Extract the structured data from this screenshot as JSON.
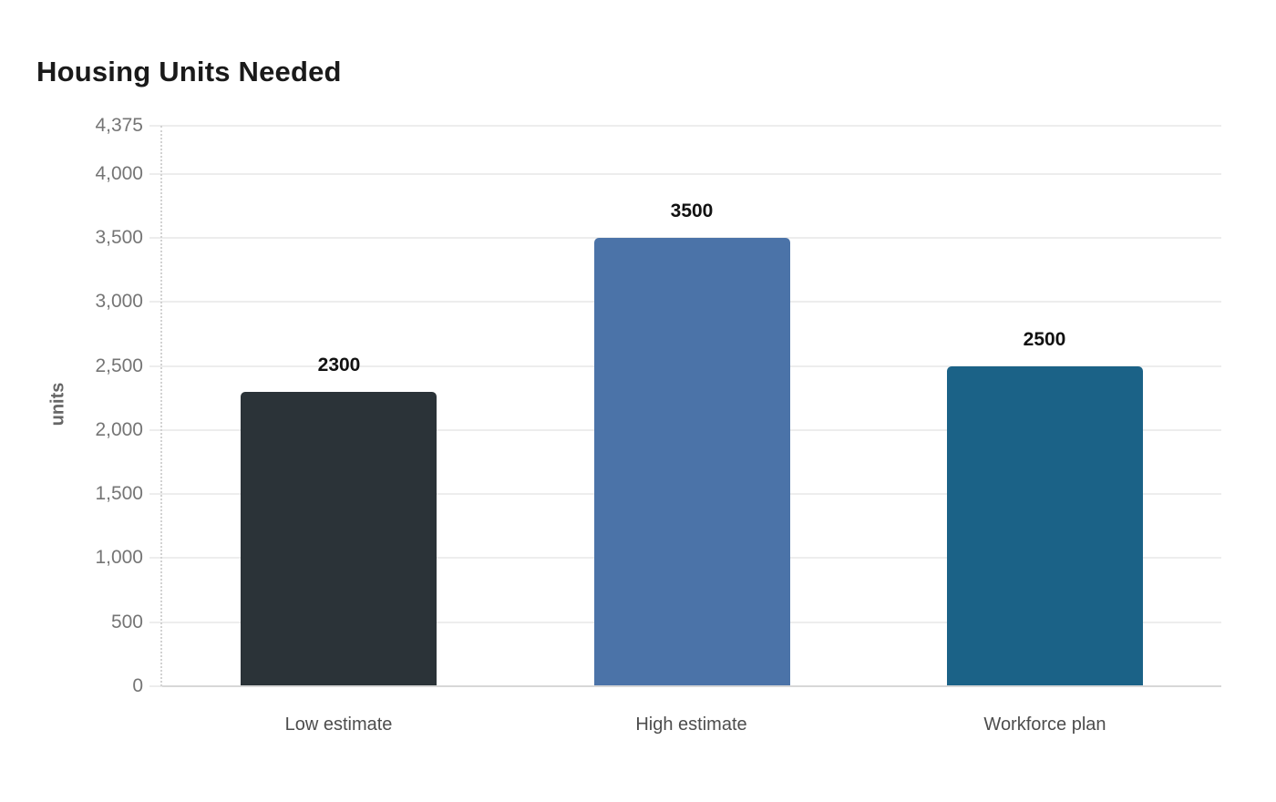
{
  "chart_data": {
    "type": "bar",
    "title": "Housing Units Needed",
    "xlabel": "",
    "ylabel": "units",
    "categories": [
      "Low estimate",
      "High estimate",
      "Workforce plan"
    ],
    "values": [
      2300,
      3500,
      2500
    ],
    "value_labels": [
      "2300",
      "3500",
      "2500"
    ],
    "bar_colors": [
      "#2b3338",
      "#4b73a8",
      "#1b6287"
    ],
    "ylim": [
      0,
      4375
    ],
    "yticks": [
      {
        "value": 0,
        "label": "0"
      },
      {
        "value": 500,
        "label": "500"
      },
      {
        "value": 1000,
        "label": "1,000"
      },
      {
        "value": 1500,
        "label": "1,500"
      },
      {
        "value": 2000,
        "label": "2,000"
      },
      {
        "value": 2500,
        "label": "2,500"
      },
      {
        "value": 3000,
        "label": "3,000"
      },
      {
        "value": 3500,
        "label": "3,500"
      },
      {
        "value": 4000,
        "label": "4,000"
      },
      {
        "value": 4375,
        "label": "4,375"
      }
    ],
    "grid": "horizontal",
    "legend": "none",
    "colors": {
      "title_text": "#1a1a1a",
      "tick_text": "#757575",
      "category_text": "#4d4d4d",
      "value_label_text": "#111111",
      "axis_title_text": "#666666",
      "gridline": "#ededed",
      "baseline": "#d7d7d7",
      "y_axis_dotted": "#d2d2d2",
      "background": "#ffffff"
    }
  }
}
